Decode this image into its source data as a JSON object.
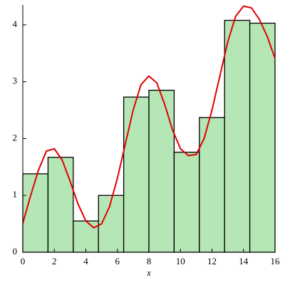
{
  "chart_data": {
    "type": "histogram",
    "bins": [
      0,
      1.6,
      3.2,
      4.8,
      6.4,
      8,
      9.6,
      11.2,
      12.8,
      14.4,
      16
    ],
    "values": [
      1.38,
      1.67,
      0.55,
      1.0,
      2.73,
      2.85,
      1.76,
      2.37,
      4.08,
      4.03
    ],
    "color": "#b5e6b5",
    "curve": {
      "color": "#e00000",
      "x": [
        0,
        0.5,
        1,
        1.5,
        2,
        2.5,
        3,
        3.5,
        4,
        4.5,
        5,
        5.5,
        6,
        6.5,
        7,
        7.5,
        8,
        8.5,
        9,
        9.5,
        10,
        10.5,
        11,
        11.5,
        12,
        12.5,
        13,
        13.5,
        14,
        14.5,
        15,
        15.5,
        16
      ],
      "values": [
        0.51,
        1.0,
        1.45,
        1.78,
        1.82,
        1.62,
        1.25,
        0.85,
        0.55,
        0.43,
        0.5,
        0.8,
        1.3,
        1.9,
        2.5,
        2.95,
        3.1,
        2.98,
        2.6,
        2.15,
        1.82,
        1.7,
        1.72,
        2.0,
        2.5,
        3.1,
        3.7,
        4.15,
        4.33,
        4.3,
        4.1,
        3.8,
        3.41
      ]
    },
    "xlim": [
      0,
      16
    ],
    "xticks": [
      0,
      2,
      4,
      6,
      8,
      10,
      12,
      14,
      16
    ],
    "ylim": [
      0,
      4.35
    ],
    "yticks": [
      0,
      1,
      2,
      3,
      4
    ],
    "xlabel": "x"
  }
}
